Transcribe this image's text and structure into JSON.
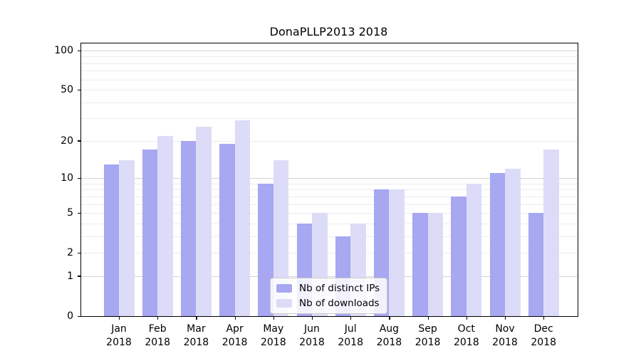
{
  "chart_data": {
    "type": "bar",
    "title": "DonaPLLP2013 2018",
    "xlabel": "",
    "ylabel": "",
    "scale": "log1p",
    "ylim": [
      0,
      100
    ],
    "grid": "horizontal",
    "legend_position": "lower-center-inside",
    "categories": [
      "Jan 2018",
      "Feb 2018",
      "Mar 2018",
      "Apr 2018",
      "May 2018",
      "Jun 2018",
      "Jul 2018",
      "Aug 2018",
      "Sep 2018",
      "Oct 2018",
      "Nov 2018",
      "Dec 2018"
    ],
    "x_tick_top": [
      "Jan",
      "Feb",
      "Mar",
      "Apr",
      "May",
      "Jun",
      "Jul",
      "Aug",
      "Sep",
      "Oct",
      "Nov",
      "Dec"
    ],
    "x_tick_bottom": [
      "2018",
      "2018",
      "2018",
      "2018",
      "2018",
      "2018",
      "2018",
      "2018",
      "2018",
      "2018",
      "2018",
      "2018"
    ],
    "series": [
      {
        "name": "Nb of distinct IPs",
        "color": "#a7a7f2",
        "values": [
          13,
          17,
          20,
          19,
          9,
          4,
          3,
          8,
          5,
          7,
          11,
          5
        ]
      },
      {
        "name": "Nb of downloads",
        "color": "#dcdcf8",
        "values": [
          14,
          22,
          26,
          29,
          14,
          5,
          4,
          8,
          5,
          9,
          12,
          17
        ]
      }
    ],
    "y_ticks": [
      100,
      50,
      20,
      10,
      5,
      2,
      1,
      0
    ],
    "grid_major_values": [
      1,
      10,
      100
    ],
    "grid_minor_values": [
      2,
      3,
      4,
      5,
      6,
      7,
      8,
      9,
      20,
      30,
      40,
      50,
      60,
      70,
      80,
      90
    ]
  },
  "legend": {
    "items": [
      {
        "label": "Nb of distinct IPs"
      },
      {
        "label": "Nb of downloads"
      }
    ]
  },
  "colors": {
    "series_ips": "#a7a7f2",
    "series_downloads": "#dcdcf8",
    "grid_minor": "#ececec",
    "grid_major": "#d3d3d3",
    "axis": "#000000",
    "legend_border": "#cccccc"
  }
}
